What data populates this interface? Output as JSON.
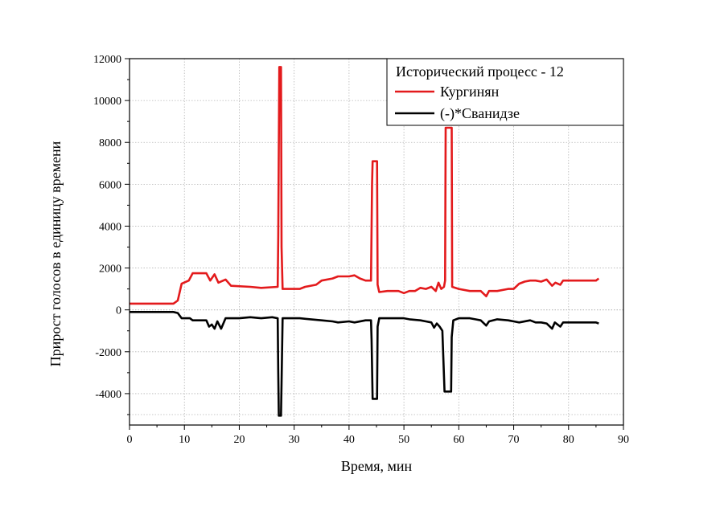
{
  "chart_data": {
    "type": "line",
    "xlabel": "Время, мин",
    "ylabel": "Прирост голосов в единицу времени",
    "xlim": [
      0,
      90
    ],
    "ylim": [
      -5500,
      12000
    ],
    "x_ticks": [
      0,
      10,
      20,
      30,
      40,
      50,
      60,
      70,
      80,
      90
    ],
    "y_ticks": [
      -4000,
      -2000,
      0,
      2000,
      4000,
      6000,
      8000,
      10000,
      12000
    ],
    "grid": true,
    "legend": {
      "placement": "top-right",
      "title": "Исторический процесс - 12"
    },
    "series": [
      {
        "name": "Кургинян",
        "color": "#e31a1c",
        "points": [
          [
            0,
            300
          ],
          [
            8,
            300
          ],
          [
            8.8,
            450
          ],
          [
            9.5,
            1250
          ],
          [
            10.8,
            1400
          ],
          [
            11.5,
            1750
          ],
          [
            14,
            1750
          ],
          [
            14.7,
            1400
          ],
          [
            15.5,
            1700
          ],
          [
            16.2,
            1300
          ],
          [
            17.5,
            1450
          ],
          [
            18.5,
            1150
          ],
          [
            22,
            1100
          ],
          [
            24,
            1050
          ],
          [
            27,
            1100
          ],
          [
            27.1,
            3500
          ],
          [
            27.3,
            11600
          ],
          [
            27.6,
            11600
          ],
          [
            27.7,
            3000
          ],
          [
            27.9,
            1000
          ],
          [
            31,
            1000
          ],
          [
            32,
            1100
          ],
          [
            34,
            1200
          ],
          [
            35,
            1400
          ],
          [
            37,
            1500
          ],
          [
            38,
            1600
          ],
          [
            40,
            1600
          ],
          [
            41,
            1650
          ],
          [
            42,
            1500
          ],
          [
            43,
            1400
          ],
          [
            44,
            1400
          ],
          [
            44.2,
            6000
          ],
          [
            44.3,
            7100
          ],
          [
            45.1,
            7100
          ],
          [
            45.2,
            1200
          ],
          [
            45.5,
            850
          ],
          [
            47,
            900
          ],
          [
            49,
            900
          ],
          [
            50,
            800
          ],
          [
            51,
            900
          ],
          [
            52,
            900
          ],
          [
            53,
            1050
          ],
          [
            54,
            1000
          ],
          [
            55,
            1100
          ],
          [
            55.8,
            900
          ],
          [
            56.3,
            1300
          ],
          [
            56.8,
            1000
          ],
          [
            57.3,
            1100
          ],
          [
            57.5,
            1400
          ],
          [
            57.6,
            8700
          ],
          [
            58.7,
            8700
          ],
          [
            58.8,
            1100
          ],
          [
            60,
            1000
          ],
          [
            62,
            900
          ],
          [
            64,
            900
          ],
          [
            65,
            650
          ],
          [
            65.5,
            900
          ],
          [
            67,
            900
          ],
          [
            69,
            1000
          ],
          [
            70,
            1000
          ],
          [
            71,
            1250
          ],
          [
            72,
            1350
          ],
          [
            73,
            1400
          ],
          [
            74,
            1400
          ],
          [
            75,
            1350
          ],
          [
            76,
            1450
          ],
          [
            77,
            1150
          ],
          [
            77.6,
            1300
          ],
          [
            78.5,
            1200
          ],
          [
            79,
            1400
          ],
          [
            81,
            1400
          ],
          [
            83,
            1400
          ],
          [
            85,
            1400
          ],
          [
            85.5,
            1500
          ]
        ]
      },
      {
        "name": "(-)*Сванидзе",
        "color": "#000000",
        "points": [
          [
            0,
            -100
          ],
          [
            8,
            -100
          ],
          [
            8.8,
            -150
          ],
          [
            9.5,
            -400
          ],
          [
            11,
            -400
          ],
          [
            11.5,
            -500
          ],
          [
            14,
            -500
          ],
          [
            14.5,
            -800
          ],
          [
            15,
            -700
          ],
          [
            15.5,
            -900
          ],
          [
            16,
            -550
          ],
          [
            16.7,
            -900
          ],
          [
            17.5,
            -400
          ],
          [
            20,
            -400
          ],
          [
            22,
            -350
          ],
          [
            24,
            -400
          ],
          [
            26,
            -350
          ],
          [
            27,
            -400
          ],
          [
            27.1,
            -3000
          ],
          [
            27.2,
            -5050
          ],
          [
            27.6,
            -5050
          ],
          [
            27.7,
            -3500
          ],
          [
            27.9,
            -400
          ],
          [
            31,
            -400
          ],
          [
            33,
            -450
          ],
          [
            35,
            -500
          ],
          [
            37,
            -550
          ],
          [
            38,
            -600
          ],
          [
            40,
            -550
          ],
          [
            41,
            -600
          ],
          [
            43,
            -500
          ],
          [
            44,
            -500
          ],
          [
            44.1,
            -1400
          ],
          [
            44.3,
            -4250
          ],
          [
            45.1,
            -4250
          ],
          [
            45.2,
            -800
          ],
          [
            45.5,
            -400
          ],
          [
            47,
            -400
          ],
          [
            49,
            -400
          ],
          [
            50,
            -400
          ],
          [
            51,
            -450
          ],
          [
            53,
            -500
          ],
          [
            54,
            -550
          ],
          [
            55,
            -600
          ],
          [
            55.5,
            -850
          ],
          [
            56,
            -650
          ],
          [
            56.5,
            -800
          ],
          [
            57,
            -1000
          ],
          [
            57.4,
            -3900
          ],
          [
            58.6,
            -3900
          ],
          [
            58.7,
            -1300
          ],
          [
            59,
            -500
          ],
          [
            60,
            -400
          ],
          [
            62,
            -400
          ],
          [
            63,
            -450
          ],
          [
            64,
            -500
          ],
          [
            65,
            -750
          ],
          [
            65.5,
            -550
          ],
          [
            67,
            -450
          ],
          [
            69,
            -500
          ],
          [
            70,
            -550
          ],
          [
            71,
            -600
          ],
          [
            73,
            -500
          ],
          [
            74,
            -600
          ],
          [
            75,
            -600
          ],
          [
            76,
            -650
          ],
          [
            77,
            -900
          ],
          [
            77.5,
            -600
          ],
          [
            78.5,
            -800
          ],
          [
            79,
            -600
          ],
          [
            81,
            -600
          ],
          [
            83,
            -600
          ],
          [
            85,
            -600
          ],
          [
            85.5,
            -650
          ]
        ]
      }
    ]
  }
}
